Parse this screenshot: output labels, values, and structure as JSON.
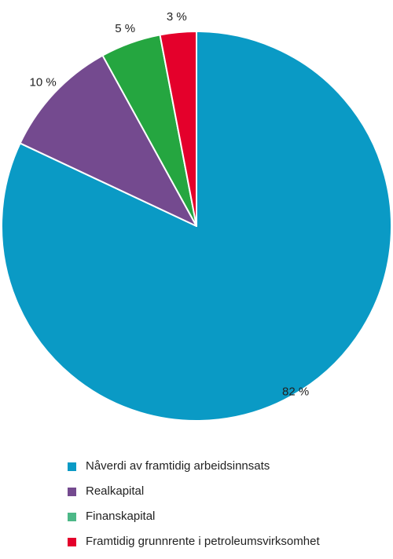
{
  "chart_data": {
    "type": "pie",
    "title": "",
    "categories": [
      "Nåverdi av framtidig arbeidsinnsats",
      "Realkapital",
      "Finanskapital",
      "Framtidig grunnrente i petroleumsvirksomhet"
    ],
    "values": [
      82,
      10,
      5,
      3
    ],
    "value_labels": [
      "82 %",
      "10 %",
      "5 %",
      "3 %"
    ],
    "colors": [
      "#0a9ac5",
      "#744a8f",
      "#25a640",
      "#e4002b"
    ],
    "legend_colors": [
      "#0a9ac5",
      "#744a8f",
      "#4cb887",
      "#e4002b"
    ],
    "start_angle_deg": 0,
    "direction": "clockwise",
    "legend_position": "bottom-left"
  }
}
